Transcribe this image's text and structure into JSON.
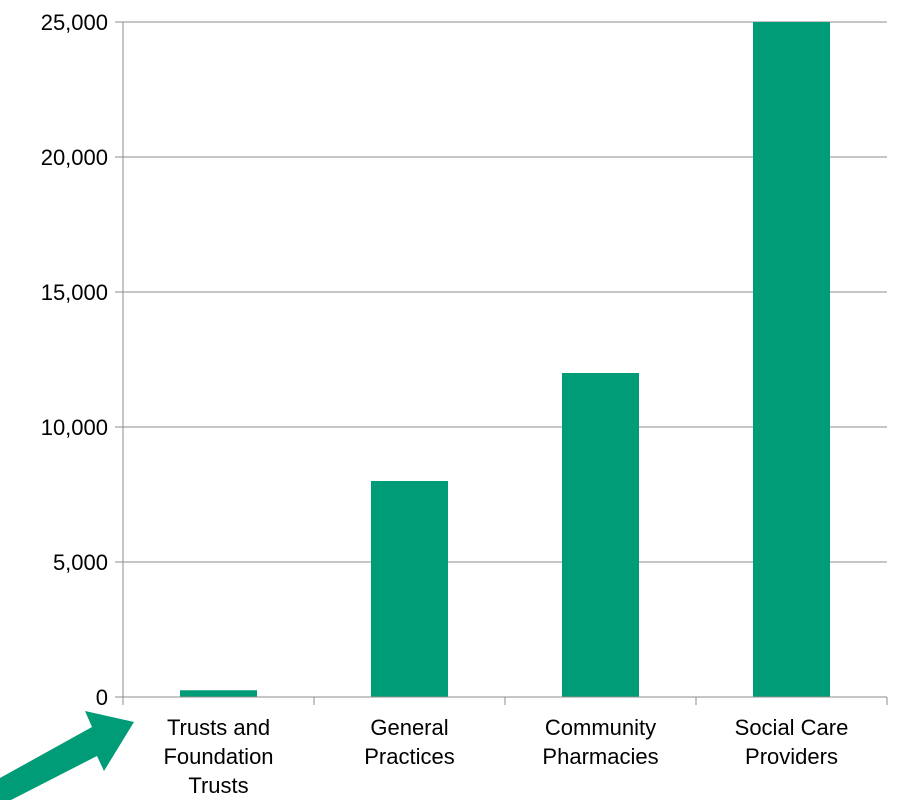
{
  "chart_data": {
    "type": "bar",
    "categories": [
      [
        "Trusts and",
        "Foundation",
        "Trusts"
      ],
      [
        "General",
        "Practices"
      ],
      [
        "Community",
        "Pharmacies"
      ],
      [
        "Social Care",
        "Providers"
      ]
    ],
    "values": [
      250,
      8000,
      12000,
      25000
    ],
    "ylim": [
      0,
      25000
    ],
    "yticks": [
      0,
      5000,
      10000,
      15000,
      20000,
      25000
    ],
    "ytick_labels": [
      "0",
      "5,000",
      "10,000",
      "15,000",
      "20,000",
      "25,000"
    ],
    "grid": true,
    "colors": {
      "bar": "#009b77",
      "arrow": "#009b77",
      "gridline": "#8c8c8c",
      "axis": "#8c8c8c"
    }
  },
  "annotations": {
    "arrow_icon": "arrow-pointing-to-first-category"
  }
}
